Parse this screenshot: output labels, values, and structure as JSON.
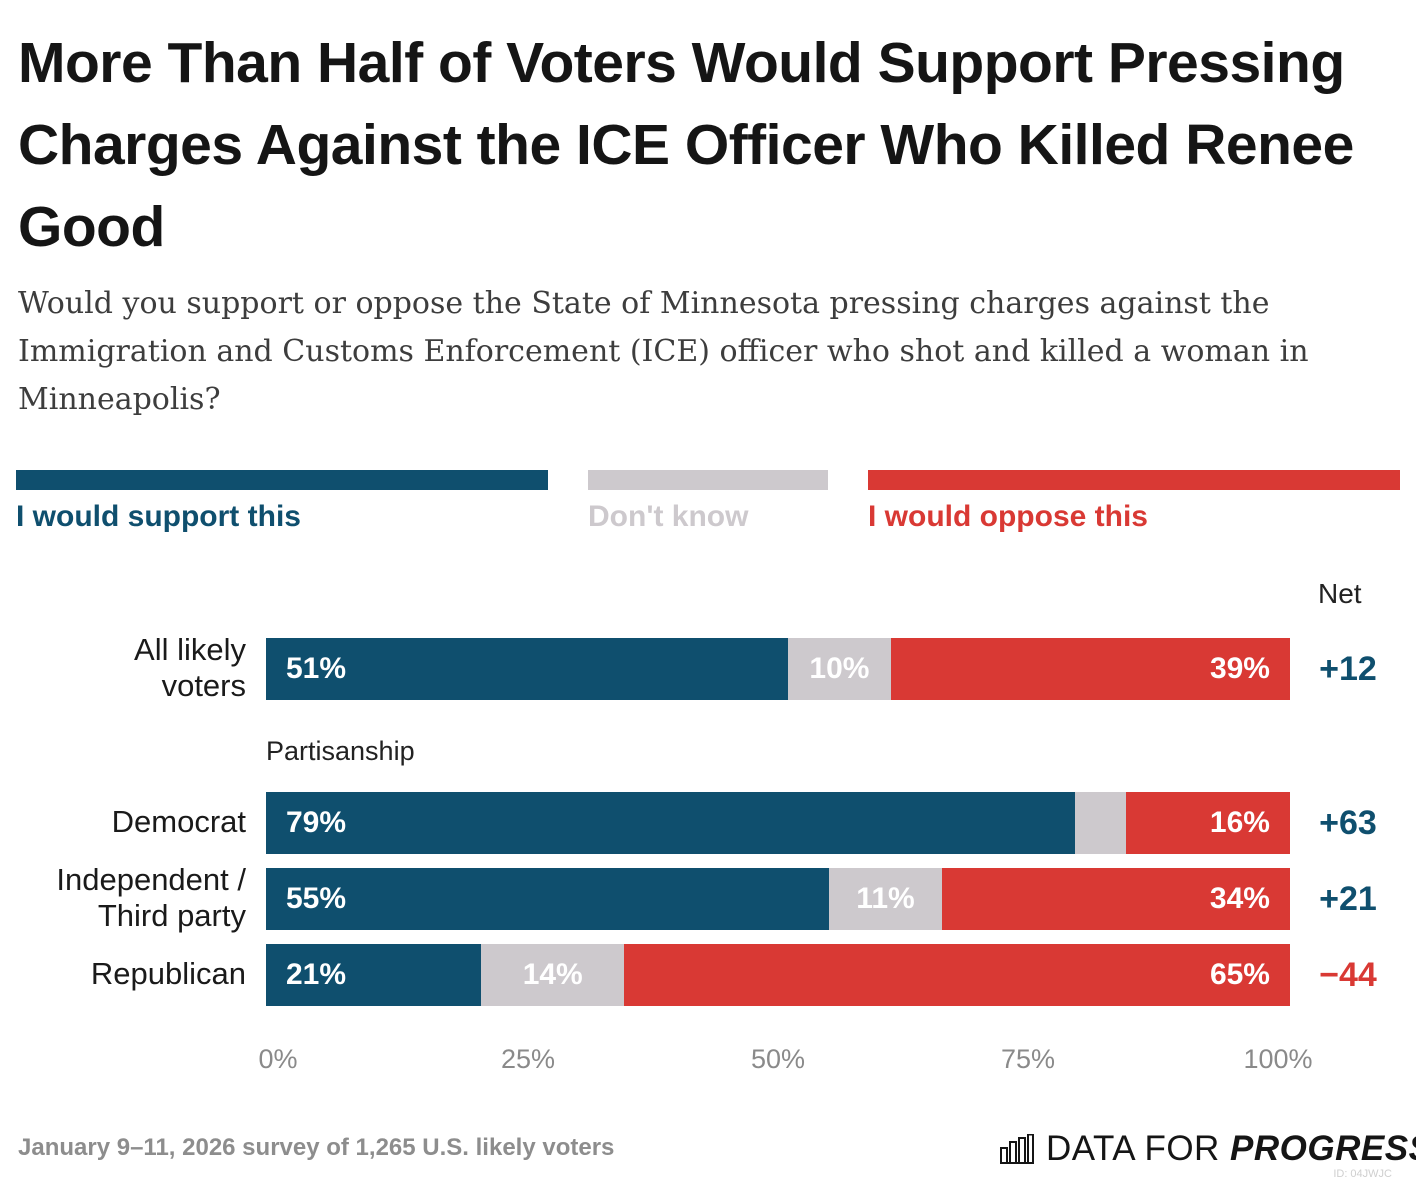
{
  "header": {
    "title": "More Than Half of Voters Would Support Pressing Charges Against the ICE Officer Who Killed Renee Good",
    "subtitle": "Would you support or oppose the State of Minnesota pressing charges against the Immigration and Customs Enforcement (ICE) officer who shot and killed a woman in Minneapolis?"
  },
  "legend": [
    {
      "label": "I would support this",
      "color": "#0f4f6e"
    },
    {
      "label": "Don't know",
      "color": "#cdc9cd"
    },
    {
      "label": "I would oppose this",
      "color": "#d93934"
    }
  ],
  "net_header": "Net",
  "group_label": "Partisanship",
  "chart_data": {
    "type": "bar",
    "orientation": "horizontal",
    "stacked": true,
    "categories": [
      "All likely voters",
      "Democrat",
      "Independent / Third party",
      "Republican"
    ],
    "series": [
      {
        "name": "I would support this",
        "color": "#0f4f6e",
        "values": [
          51,
          79,
          55,
          21
        ],
        "labels": [
          "51%",
          "79%",
          "55%",
          "21%"
        ]
      },
      {
        "name": "Don't know",
        "color": "#cdc9cd",
        "values": [
          10,
          5,
          11,
          14
        ],
        "labels": [
          "10%",
          "",
          "11%",
          "14%"
        ]
      },
      {
        "name": "I would oppose this",
        "color": "#d93934",
        "values": [
          39,
          16,
          34,
          65
        ],
        "labels": [
          "39%",
          "16%",
          "34%",
          "65%"
        ]
      }
    ],
    "net": [
      {
        "label": "+12",
        "color": "#0f4f6e"
      },
      {
        "label": "+63",
        "color": "#0f4f6e"
      },
      {
        "label": "+21",
        "color": "#0f4f6e"
      },
      {
        "label": "−44",
        "color": "#d93934"
      }
    ],
    "xlim": [
      0,
      100
    ],
    "xticks": [
      "0%",
      "25%",
      "50%",
      "75%",
      "100%"
    ],
    "legend_position": "top"
  },
  "footer": {
    "note": "January 9–11, 2026 survey of 1,265 U.S. likely voters",
    "logo_light": "DATA FOR ",
    "logo_bold": "PROGRESS",
    "chart_id": "ID: 04JWJC"
  }
}
